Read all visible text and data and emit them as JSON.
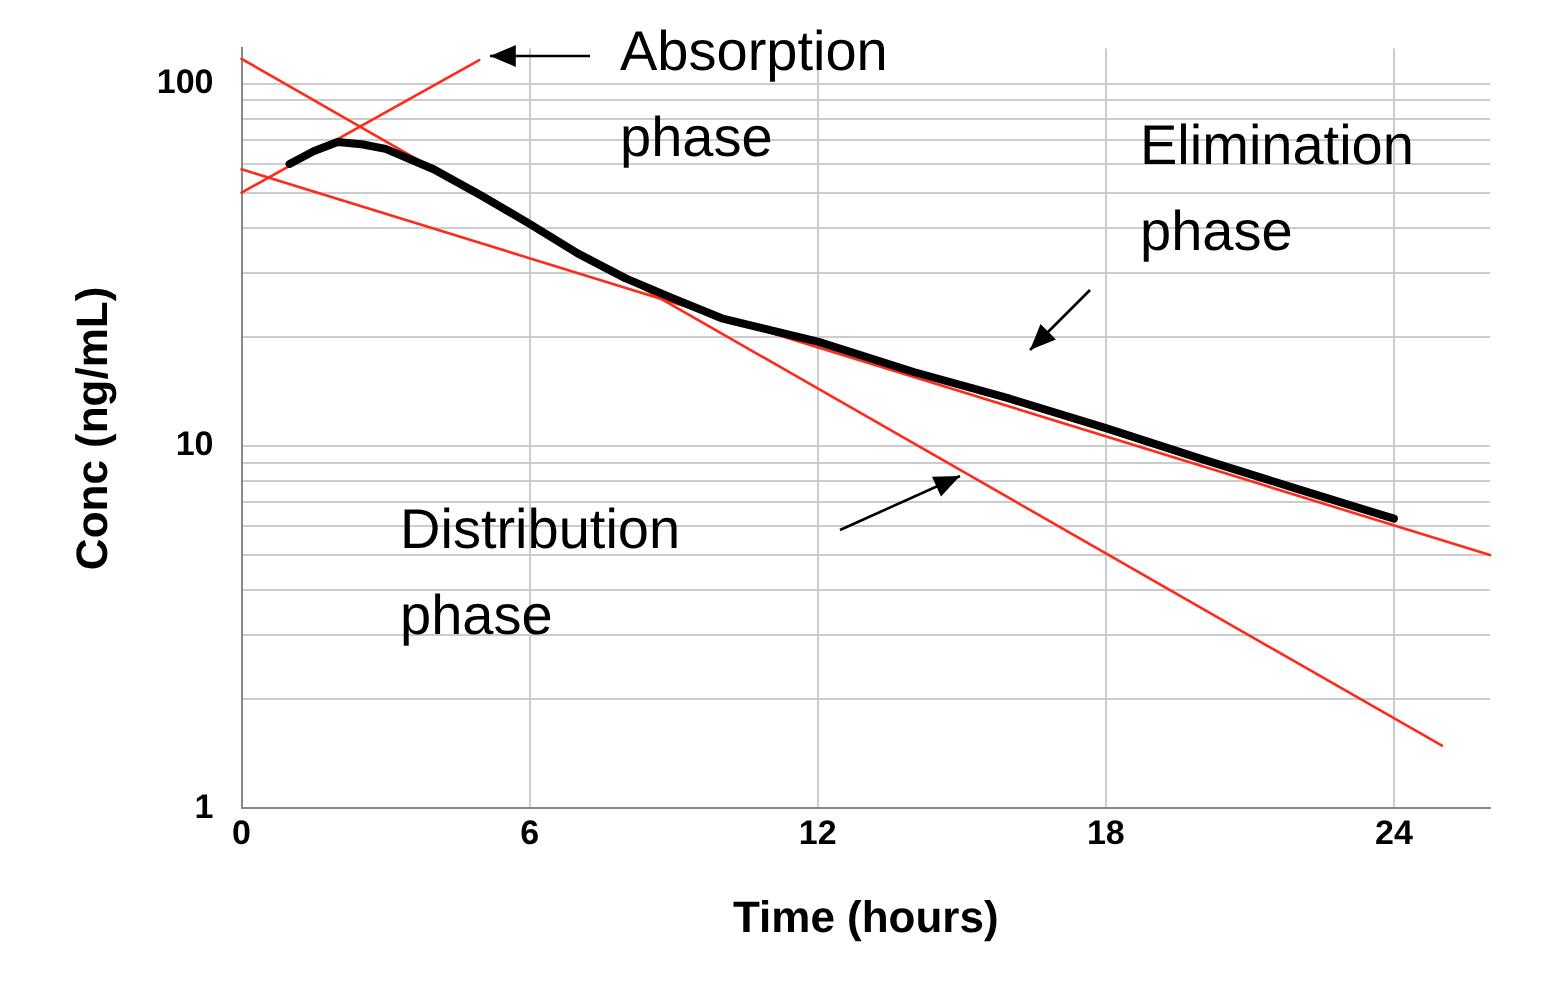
{
  "chart_data": {
    "type": "line",
    "xlabel": "Time (hours)",
    "ylabel": "Conc (ng/mL)",
    "log": "y",
    "grid": true,
    "legend": false,
    "marker": "none",
    "xlim": [
      0,
      26
    ],
    "xticks": [
      0,
      6,
      12,
      18,
      24
    ],
    "ylim": [
      1,
      125
    ],
    "yticks": [
      1,
      {
        "value": 2,
        "label": null
      },
      {
        "value": 3,
        "label": null
      },
      {
        "value": 4,
        "label": null
      },
      {
        "value": 5,
        "label": null
      },
      {
        "value": 6,
        "label": null
      },
      {
        "value": 7,
        "label": null
      },
      {
        "value": 8,
        "label": null
      },
      {
        "value": 9,
        "label": null
      },
      10,
      {
        "value": 20,
        "label": null
      },
      {
        "value": 30,
        "label": null
      },
      {
        "value": 40,
        "label": null
      },
      {
        "value": 50,
        "label": null
      },
      {
        "value": 60,
        "label": null
      },
      {
        "value": 70,
        "label": null
      },
      {
        "value": 80,
        "label": null
      },
      {
        "value": 90,
        "label": null
      },
      100
    ],
    "series": [
      {
        "color": "#ff2a1a",
        "x": [
          0,
          4.95
        ],
        "values": [
          50,
          116
        ]
      },
      {
        "color": "#ff2a1a",
        "x": [
          0,
          25
        ],
        "values": [
          117,
          1.49
        ]
      },
      {
        "color": "#ff2a1a",
        "x": [
          0,
          26
        ],
        "values": [
          58,
          5.0
        ]
      },
      {
        "color": "#000000",
        "x": [
          1,
          1.5,
          2,
          2.5,
          3,
          4,
          5,
          6,
          7,
          8,
          9,
          10,
          12,
          14,
          16,
          18,
          20,
          22,
          24
        ],
        "values": [
          60,
          65,
          69,
          68,
          66,
          58,
          49,
          41,
          34,
          29,
          25.5,
          22.5,
          19.4,
          16,
          13.5,
          11.2,
          9.2,
          7.6,
          6.3
        ]
      }
    ],
    "annotations": [
      "Absorption phase",
      "Elimination phase",
      "Distribution phase"
    ]
  }
}
